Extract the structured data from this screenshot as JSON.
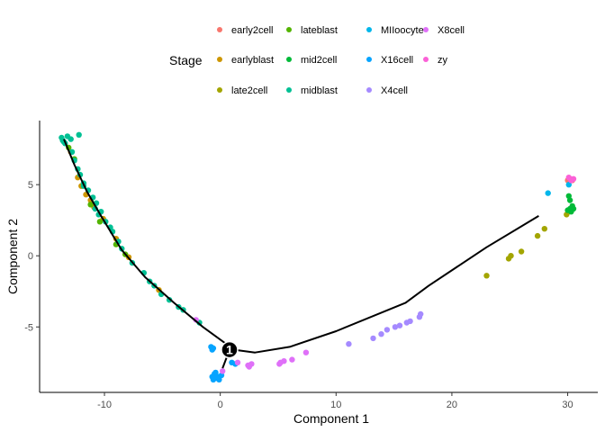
{
  "chart_data": {
    "type": "scatter",
    "xlabel": "Component 1",
    "ylabel": "Component 2",
    "xlim": [
      -15.6,
      32.6
    ],
    "ylim": [
      -9.6,
      9.5
    ],
    "x_ticks": [
      -10,
      0,
      10,
      20,
      30
    ],
    "x_tick_labels": [
      "-10",
      "0",
      "10",
      "20",
      "30"
    ],
    "y_ticks": [
      -5,
      0,
      5
    ],
    "y_tick_labels": [
      "-5",
      "0",
      "5"
    ],
    "grid": false,
    "legend": {
      "title": "Stage",
      "placement": "top",
      "entries": [
        {
          "name": "early2cell",
          "color": "#F8766D"
        },
        {
          "name": "earlyblast",
          "color": "#CD9600"
        },
        {
          "name": "late2cell",
          "color": "#A3A500"
        },
        {
          "name": "lateblast",
          "color": "#53B400"
        },
        {
          "name": "mid2cell",
          "color": "#00BA38"
        },
        {
          "name": "midblast",
          "color": "#00C094"
        },
        {
          "name": "MIIoocyte",
          "color": "#00B6EB"
        },
        {
          "name": "X16cell",
          "color": "#06A4FF"
        },
        {
          "name": "X4cell",
          "color": "#A58AFF"
        },
        {
          "name": "X8cell",
          "color": "#DF70F8"
        },
        {
          "name": "zy",
          "color": "#FB61D7"
        }
      ]
    },
    "trajectory": [
      [
        -13.5,
        8.2
      ],
      [
        -12.6,
        6.4
      ],
      [
        -11.5,
        4.5
      ],
      [
        -10.3,
        2.8
      ],
      [
        -8.5,
        0.4
      ],
      [
        -6.5,
        -1.5
      ],
      [
        -4.0,
        -3.3
      ],
      [
        -1.5,
        -5.0
      ],
      [
        1.2,
        -6.6
      ],
      [
        3.0,
        -6.8
      ],
      [
        6.0,
        -6.4
      ],
      [
        10.0,
        -5.3
      ],
      [
        16.0,
        -3.3
      ],
      [
        18.0,
        -2.1
      ],
      [
        23.0,
        0.6
      ],
      [
        27.5,
        2.8
      ]
    ],
    "branch_to_x16cell": [
      [
        0.8,
        -6.6
      ],
      [
        0.2,
        -7.9
      ]
    ],
    "branch_node": {
      "label": "1",
      "x": 0.8,
      "y": -6.6
    },
    "series": [
      {
        "name": "early2cell",
        "color": "#F8766D",
        "points": [
          [
            30.0,
            5.3
          ],
          [
            30.2,
            5.4
          ],
          [
            30.4,
            5.3
          ]
        ]
      },
      {
        "name": "earlyblast",
        "color": "#CD9600",
        "points": [
          [
            -12.3,
            5.5
          ],
          [
            -12.0,
            4.9
          ],
          [
            -11.6,
            4.3
          ],
          [
            -11.2,
            3.9
          ],
          [
            -10.9,
            3.4
          ],
          [
            -10.1,
            2.6
          ],
          [
            -9.0,
            1.2
          ],
          [
            -7.9,
            -0.1
          ],
          [
            -5.3,
            -2.4
          ],
          [
            -12.9,
            7.3
          ]
        ]
      },
      {
        "name": "late2cell",
        "color": "#A3A500",
        "points": [
          [
            23.0,
            -1.4
          ],
          [
            24.9,
            -0.2
          ],
          [
            25.1,
            0.0
          ],
          [
            26.0,
            0.3
          ],
          [
            27.4,
            1.4
          ],
          [
            28.0,
            1.9
          ],
          [
            29.9,
            2.9
          ],
          [
            30.1,
            3.1
          ]
        ]
      },
      {
        "name": "lateblast",
        "color": "#53B400",
        "points": [
          [
            -13.1,
            7.6
          ],
          [
            -12.6,
            6.8
          ],
          [
            -11.2,
            3.6
          ],
          [
            -10.4,
            2.4
          ],
          [
            -9.0,
            0.8
          ],
          [
            -8.2,
            0.1
          ]
        ]
      },
      {
        "name": "mid2cell",
        "color": "#00BA38",
        "points": [
          [
            30.0,
            3.2
          ],
          [
            30.2,
            3.3
          ],
          [
            30.4,
            3.5
          ],
          [
            30.5,
            3.3
          ],
          [
            30.1,
            4.2
          ],
          [
            30.2,
            3.9
          ],
          [
            30.3,
            3.1
          ]
        ]
      },
      {
        "name": "midblast",
        "color": "#00C094",
        "points": [
          [
            -13.7,
            8.3
          ],
          [
            -13.6,
            8.1
          ],
          [
            -13.4,
            7.9
          ],
          [
            -13.2,
            8.4
          ],
          [
            -13.5,
            8.0
          ],
          [
            -12.9,
            8.2
          ],
          [
            -12.2,
            8.5
          ],
          [
            -12.8,
            7.3
          ],
          [
            -12.3,
            6.1
          ],
          [
            -12.1,
            5.7
          ],
          [
            -11.8,
            5.1
          ],
          [
            -11.4,
            4.6
          ],
          [
            -11.0,
            4.1
          ],
          [
            -10.7,
            3.7
          ],
          [
            -10.3,
            3.1
          ],
          [
            -10.5,
            2.9
          ],
          [
            -9.9,
            2.4
          ],
          [
            -10.8,
            3.3
          ],
          [
            -9.5,
            2.0
          ],
          [
            -9.3,
            1.7
          ],
          [
            -8.8,
            1.0
          ],
          [
            -8.5,
            0.5
          ],
          [
            -7.6,
            -0.5
          ],
          [
            -6.6,
            -1.2
          ],
          [
            -6.1,
            -1.8
          ],
          [
            -5.7,
            -2.1
          ],
          [
            -5.1,
            -2.7
          ],
          [
            -4.4,
            -3.1
          ],
          [
            -3.6,
            -3.6
          ],
          [
            -3.2,
            -3.8
          ],
          [
            -1.8,
            -4.7
          ],
          [
            -11.8,
            4.9
          ],
          [
            -12.6,
            6.7
          ]
        ]
      },
      {
        "name": "MIIoocyte",
        "color": "#00B6EB",
        "points": [
          [
            28.3,
            4.4
          ],
          [
            30.1,
            5.0
          ]
        ]
      },
      {
        "name": "X16cell",
        "color": "#06A4FF",
        "points": [
          [
            -0.8,
            -6.4
          ],
          [
            -0.7,
            -6.6
          ],
          [
            -0.6,
            -6.5
          ],
          [
            1.0,
            -7.5
          ],
          [
            1.3,
            -7.6
          ],
          [
            -0.5,
            -8.3
          ],
          [
            -0.3,
            -8.6
          ],
          [
            -0.6,
            -8.7
          ],
          [
            -0.2,
            -8.5
          ],
          [
            0.1,
            -8.4
          ],
          [
            -0.4,
            -8.2
          ],
          [
            -0.7,
            -8.5
          ],
          [
            -0.1,
            -8.7
          ]
        ]
      },
      {
        "name": "X4cell",
        "color": "#A58AFF",
        "points": [
          [
            11.1,
            -6.2
          ],
          [
            13.2,
            -5.8
          ],
          [
            13.9,
            -5.5
          ],
          [
            14.4,
            -5.2
          ],
          [
            15.1,
            -5.0
          ],
          [
            15.5,
            -4.9
          ],
          [
            16.1,
            -4.7
          ],
          [
            16.4,
            -4.6
          ],
          [
            17.2,
            -4.3
          ],
          [
            17.3,
            -4.1
          ]
        ]
      },
      {
        "name": "X8cell",
        "color": "#DF70F8",
        "points": [
          [
            -2.1,
            -4.5
          ],
          [
            0.2,
            -8.1
          ],
          [
            1.5,
            -7.5
          ],
          [
            2.4,
            -7.7
          ],
          [
            2.7,
            -7.6
          ],
          [
            5.1,
            -7.6
          ],
          [
            5.5,
            -7.4
          ],
          [
            6.2,
            -7.3
          ],
          [
            7.4,
            -6.8
          ],
          [
            2.5,
            -7.8
          ],
          [
            5.2,
            -7.5
          ]
        ]
      },
      {
        "name": "zy",
        "color": "#FB61D7",
        "points": [
          [
            30.3,
            5.3
          ],
          [
            30.5,
            5.4
          ],
          [
            30.1,
            5.5
          ]
        ]
      }
    ]
  }
}
